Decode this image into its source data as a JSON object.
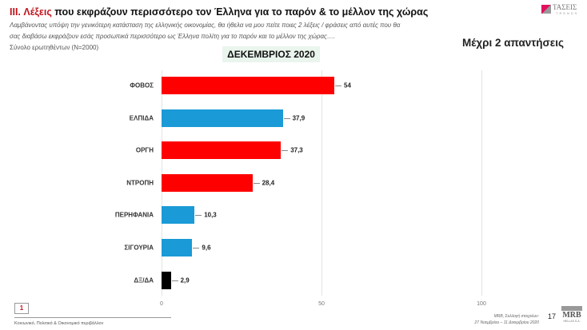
{
  "header": {
    "title_accent": "III. Λέξεις",
    "title_rest": " που εκφράζουν περισσότερο τον Έλληνα για το παρόν & το μέλλον της χώρας",
    "subtitle_line1": "Λαμβάνοντας υπόψη την γενικότερη κατάσταση της ελληνικής οικονομίας, θα ήθελα να μου πείτε ποιες 2  λέξεις / φράσεις από αυτές που θα",
    "subtitle_line2": "σας διαβάσω εκφράζουν εσάς προσωπικά περισσότερο ως Έλληνα πολίτη για το παρόν και το μέλλον της χώρας….",
    "base": "Σύνολο ερωτηθέντων (N=2000)",
    "right_title": "Μέχρι 2 απαντήσεις",
    "logo": "ΤΑΣΕΙΣ",
    "logo_sub": "TRENDS"
  },
  "chart_data": {
    "type": "bar",
    "orientation": "horizontal",
    "title": "ΔΕΚΕΜΒΡΙΟΣ 2020",
    "categories": [
      "ΦΟΒΟΣ",
      "ΕΛΠΙΔΑ",
      "ΟΡΓΗ",
      "ΝΤΡΟΠΗ",
      "ΠΕΡΗΦΑΝΙΑ",
      "ΣΙΓΟΥΡΙΑ",
      "ΔΞ/ΔΑ"
    ],
    "values": [
      54,
      37.9,
      37.3,
      28.4,
      10.3,
      9.6,
      2.9
    ],
    "labels": [
      "54",
      "37,9",
      "37,3",
      "28,4",
      "10,3",
      "9,6",
      "2,9"
    ],
    "colors": [
      "#ff0000",
      "#1a9ad6",
      "#ff0000",
      "#ff0000",
      "#1a9ad6",
      "#1a9ad6",
      "#000000"
    ],
    "xlim": [
      0,
      100
    ],
    "ticks": [
      "0",
      "50",
      "100"
    ],
    "tick_values": [
      0,
      50,
      100
    ],
    "grid": true
  },
  "footer": {
    "page_box": "1",
    "section": "Κοινωνικό, Πολιτικό & Οικονομικό περιβάλλον",
    "source1": "MRB, Συλλογή στοιχείων:",
    "source2": "27 Νοεμβρίου – 11 Δεκεμβρίου 2020",
    "page": "17",
    "brand": "MRB",
    "brand_sub": "HELLAS S.A."
  }
}
